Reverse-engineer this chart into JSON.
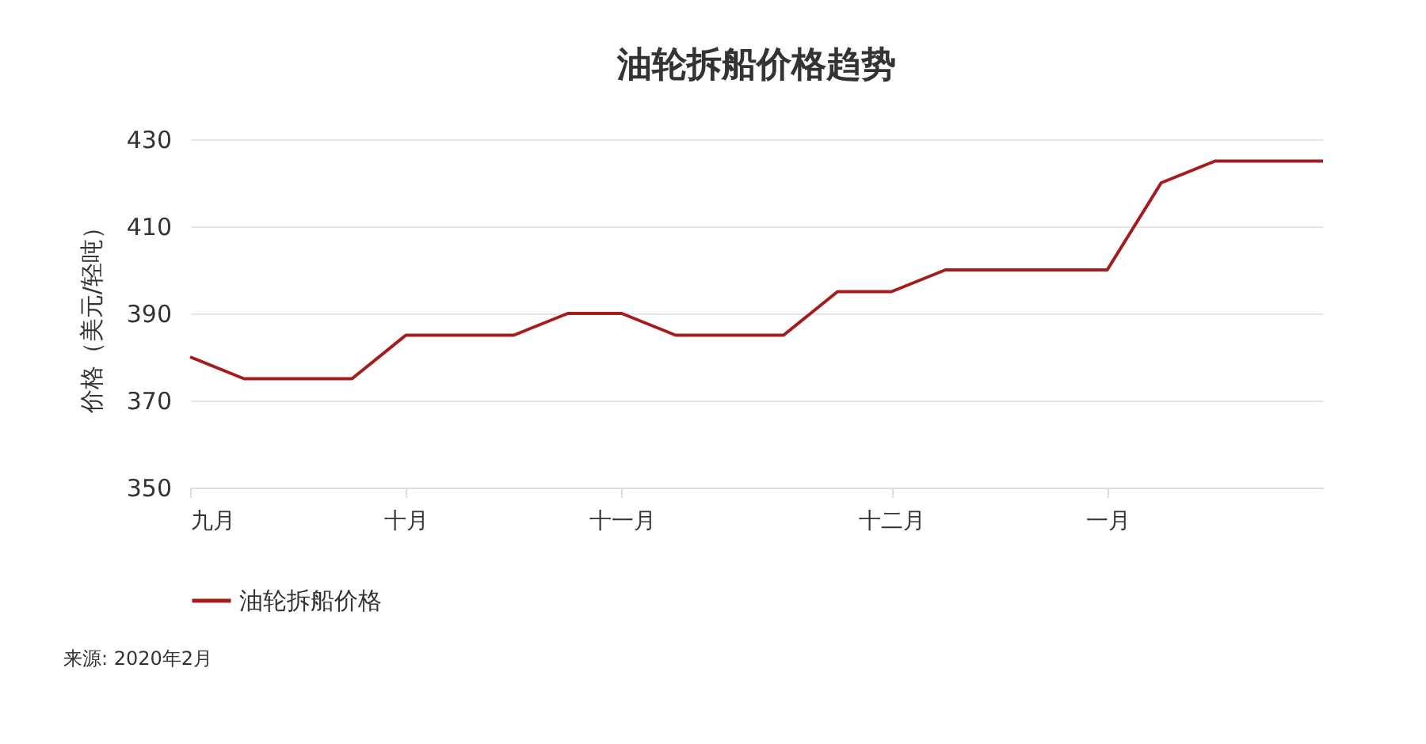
{
  "chart_data": {
    "type": "line",
    "title": "油轮拆船价格趋势",
    "ylabel": "价格（美元/轻吨）",
    "categories": [
      "九月",
      null,
      null,
      null,
      "十月",
      null,
      null,
      null,
      "十一月",
      null,
      null,
      null,
      null,
      "十二月",
      null,
      null,
      null,
      "一月",
      null,
      null,
      null,
      null
    ],
    "ylim": [
      350,
      430
    ],
    "yticks": [
      350,
      370,
      390,
      410,
      430
    ],
    "series": [
      {
        "name": "油轮拆船价格",
        "color": "#a51c1c",
        "values": [
          380,
          375,
          375,
          375,
          385,
          385,
          385,
          390,
          390,
          385,
          385,
          385,
          395,
          395,
          400,
          400,
          400,
          400,
          420,
          425,
          425,
          425
        ]
      }
    ],
    "grid": "y",
    "legend": "bottom",
    "marker": "none",
    "line_style": "solid",
    "annotations": [
      "来源: 2020年2月"
    ]
  }
}
